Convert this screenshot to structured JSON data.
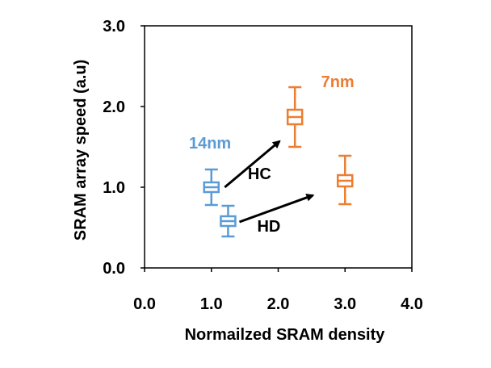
{
  "chart_data": {
    "type": "scatter",
    "title": "",
    "xlabel": "Normailzed SRAM density",
    "ylabel": "SRAM array speed (a.u)",
    "xlim": [
      0,
      4
    ],
    "ylim": [
      0,
      3
    ],
    "xticks": [
      0,
      1,
      2,
      3,
      4
    ],
    "yticks": [
      0,
      1,
      2,
      3
    ],
    "xtick_labels": [
      "0.0",
      "1.0",
      "2.0",
      "3.0",
      "4.0"
    ],
    "ytick_labels": [
      "0.0",
      "1.0",
      "2.0",
      "3.0"
    ],
    "grid": false,
    "series": [
      {
        "name": "14nm",
        "color": "#5b9bd5",
        "points": [
          {
            "label": "HC",
            "x": 1.0,
            "median": 1.0,
            "q1": 0.94,
            "q3": 1.06,
            "min": 0.78,
            "max": 1.22
          },
          {
            "label": "HD",
            "x": 1.25,
            "median": 0.58,
            "q1": 0.52,
            "q3": 0.64,
            "min": 0.39,
            "max": 0.77
          }
        ]
      },
      {
        "name": "7nm",
        "color": "#ed7d31",
        "points": [
          {
            "label": "HC",
            "x": 2.25,
            "median": 1.87,
            "q1": 1.78,
            "q3": 1.96,
            "min": 1.5,
            "max": 2.24
          },
          {
            "label": "HD",
            "x": 3.0,
            "median": 1.08,
            "q1": 1.01,
            "q3": 1.15,
            "min": 0.79,
            "max": 1.39
          }
        ]
      }
    ],
    "annotations": [
      {
        "text": "14nm",
        "color": "#5b9bd5",
        "x": 0.98,
        "y": 1.48
      },
      {
        "text": "7nm",
        "color": "#ed7d31",
        "x": 2.89,
        "y": 2.24
      },
      {
        "text": "HC",
        "color": "#000000",
        "x": 1.72,
        "y": 1.1
      },
      {
        "text": "HD",
        "color": "#000000",
        "x": 1.86,
        "y": 0.45
      }
    ],
    "arrows": [
      {
        "from": [
          1.2,
          1.0
        ],
        "to": [
          2.02,
          1.57
        ]
      },
      {
        "from": [
          1.42,
          0.57
        ],
        "to": [
          2.52,
          0.9
        ]
      }
    ]
  }
}
